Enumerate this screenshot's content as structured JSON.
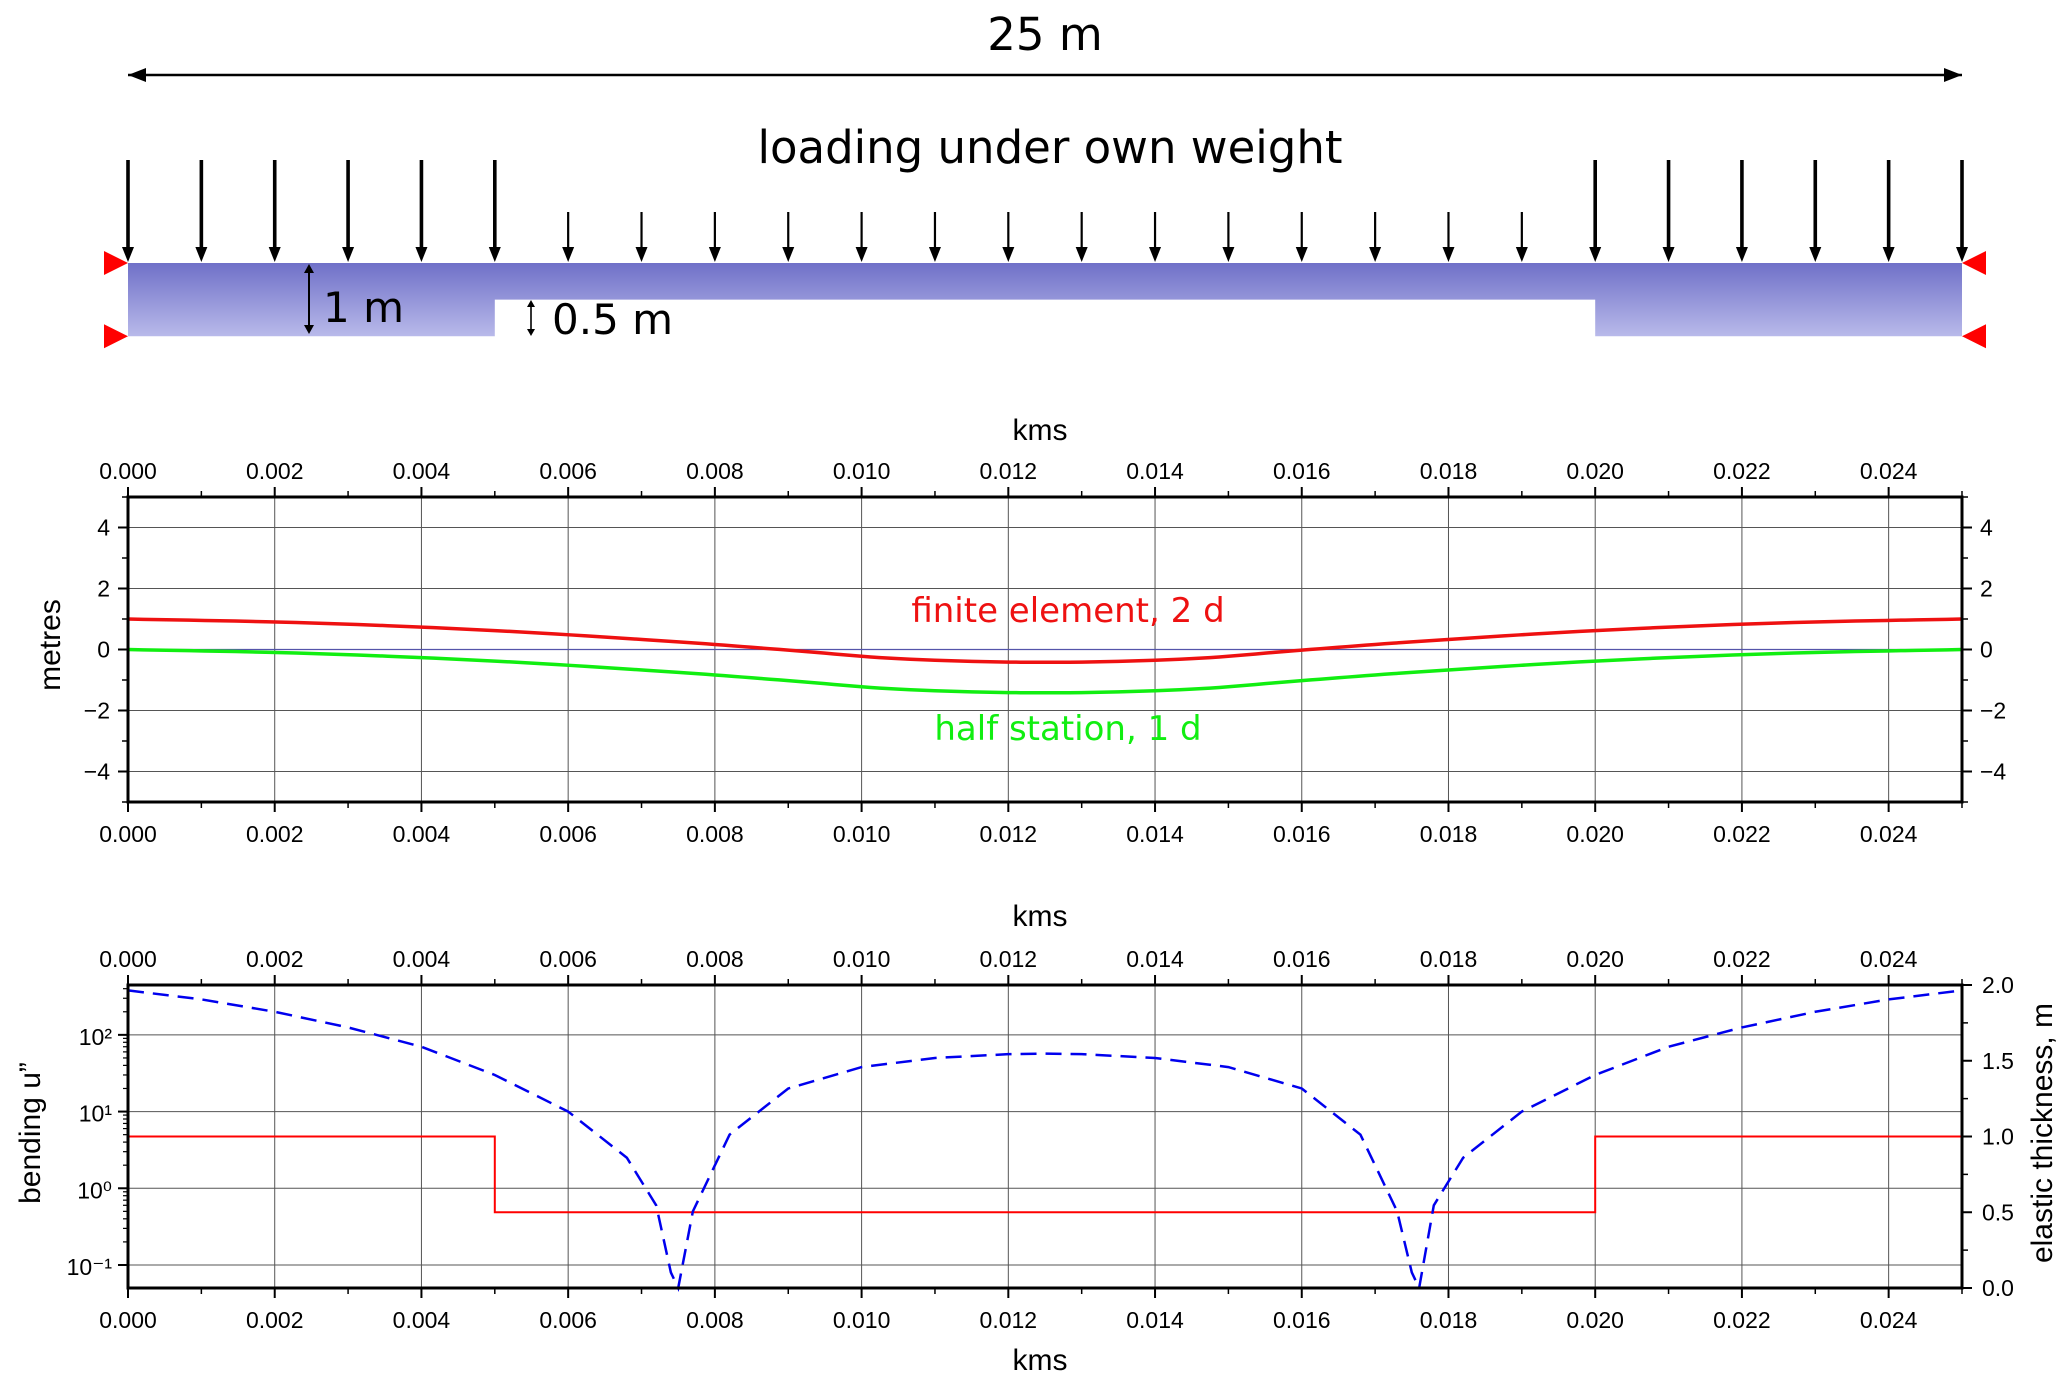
{
  "colors": {
    "beam_top": "#6f70c8",
    "beam_bottom": "#b9baea",
    "support": "#ff0000",
    "finite_element": "#ee1111",
    "half_station": "#11ee11",
    "bending": "#0000ee",
    "thickness": "#ff0000",
    "grid": "#555555"
  },
  "diagram": {
    "span_label": "25 m",
    "title": "loading under own weight",
    "thick_label": "1 m",
    "thin_label": "0.5 m",
    "beam_length_m": 25,
    "thick_depth_m": 1.0,
    "thin_depth_m": 0.5,
    "thick_segments_m": [
      [
        0,
        5
      ],
      [
        20,
        25
      ]
    ]
  },
  "chart_data": [
    {
      "type": "line",
      "xlabel": "kms",
      "ylabel": "metres",
      "xlim": [
        0.0,
        0.025
      ],
      "ylim": [
        -5,
        5
      ],
      "xticks": [
        "0.000",
        "0.002",
        "0.004",
        "0.006",
        "0.008",
        "0.010",
        "0.012",
        "0.014",
        "0.016",
        "0.018",
        "0.020",
        "0.022",
        "0.024"
      ],
      "yticks": [
        "4",
        "2",
        "0",
        "−2",
        "−4"
      ],
      "ytick_values": [
        4,
        2,
        0,
        -2,
        -4
      ],
      "grid": true,
      "annotations": [
        "finite element, 2 d",
        "half station, 1 d"
      ],
      "series": [
        {
          "name": "finite element, 2 d",
          "x": [
            0,
            0.0025,
            0.005,
            0.0075,
            0.009,
            0.0105,
            0.0125,
            0.0145,
            0.016,
            0.0175,
            0.02,
            0.0225,
            0.025
          ],
          "y": [
            1.0,
            0.87,
            0.62,
            0.25,
            -0.02,
            -0.3,
            -0.42,
            -0.3,
            -0.02,
            0.25,
            0.62,
            0.87,
            1.0
          ]
        },
        {
          "name": "half station, 1 d",
          "x": [
            0,
            0.0025,
            0.005,
            0.0075,
            0.009,
            0.0105,
            0.0125,
            0.0145,
            0.016,
            0.0175,
            0.02,
            0.0225,
            0.025
          ],
          "y": [
            0.0,
            -0.13,
            -0.38,
            -0.75,
            -1.02,
            -1.3,
            -1.42,
            -1.3,
            -1.02,
            -0.75,
            -0.38,
            -0.13,
            0.0
          ]
        }
      ]
    },
    {
      "type": "line",
      "xlabel": "kms",
      "ylabel": "bending u”",
      "y2label": "elastic thickness, m",
      "xlim": [
        0.0,
        0.025
      ],
      "ylim_log10": [
        -1.3,
        2.65
      ],
      "y2lim": [
        0.0,
        2.0
      ],
      "xticks": [
        "0.000",
        "0.002",
        "0.004",
        "0.006",
        "0.008",
        "0.010",
        "0.012",
        "0.014",
        "0.016",
        "0.018",
        "0.020",
        "0.022",
        "0.024"
      ],
      "yticks": [
        "10⁻¹",
        "10⁰",
        "10¹",
        "10²"
      ],
      "ytick_exponents": [
        -1,
        0,
        1,
        2
      ],
      "y2ticks": [
        "0.0",
        "0.5",
        "1.0",
        "1.5",
        "2.0"
      ],
      "grid": true,
      "series": [
        {
          "role": "bending",
          "style": "dashed",
          "x": [
            0,
            0.001,
            0.002,
            0.003,
            0.004,
            0.005,
            0.006,
            0.0068,
            0.0072,
            0.0074,
            0.0075,
            0.0077,
            0.0082,
            0.009,
            0.01,
            0.011,
            0.012,
            0.0125,
            0.013,
            0.014,
            0.015,
            0.016,
            0.0168,
            0.0173,
            0.0175,
            0.0176,
            0.0178,
            0.0182,
            0.019,
            0.02,
            0.021,
            0.022,
            0.023,
            0.024,
            0.025
          ],
          "y": [
            380,
            290,
            200,
            125,
            70,
            30,
            10,
            2.5,
            0.6,
            0.08,
            0.05,
            0.5,
            5,
            20,
            38,
            50,
            56,
            57,
            56,
            50,
            38,
            20,
            5,
            0.5,
            0.08,
            0.05,
            0.6,
            2.5,
            10,
            30,
            70,
            125,
            200,
            290,
            380
          ]
        },
        {
          "role": "elastic thickness",
          "style": "step",
          "x": [
            0,
            0.005,
            0.005,
            0.02,
            0.02,
            0.025
          ],
          "y": [
            1.0,
            1.0,
            0.5,
            0.5,
            1.0,
            1.0
          ]
        }
      ]
    }
  ]
}
